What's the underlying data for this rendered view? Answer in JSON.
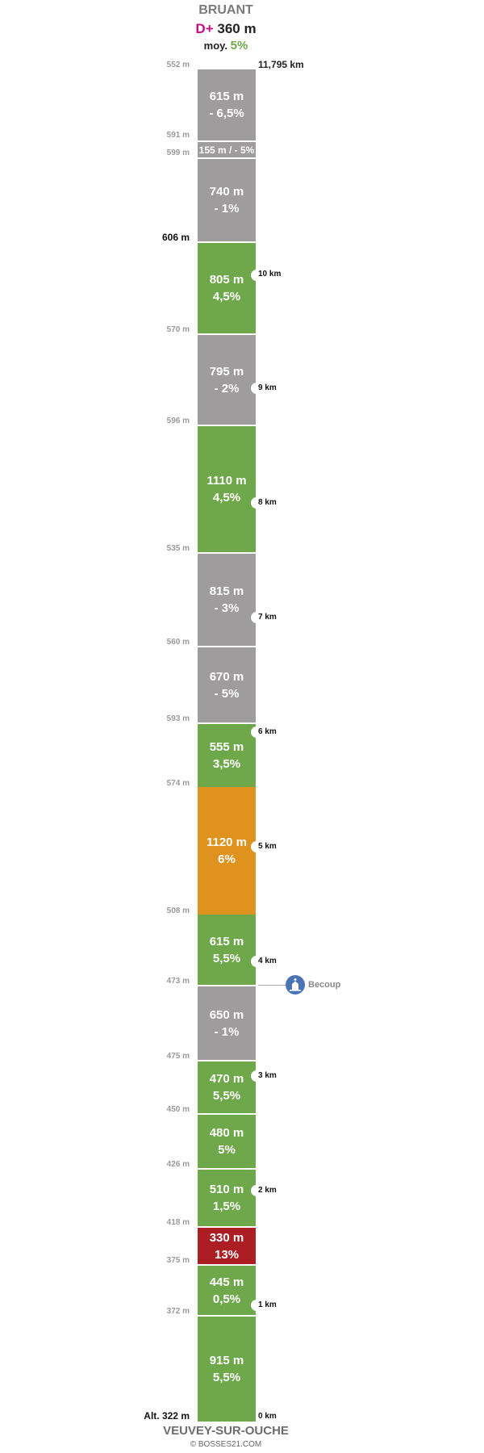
{
  "header": {
    "summit_name": "BRUANT",
    "gain_label": "D+",
    "gain_value": "360 m",
    "avg_label": "moy.",
    "avg_value": "5%",
    "total_distance": "11,795 km"
  },
  "footer": {
    "start_name": "VEUVEY-SUR-OUCHE",
    "credit": "© BOSSES21.COM"
  },
  "colors": {
    "gray": "#9e9c9d",
    "green": "#6ea84a",
    "orange": "#e0921e",
    "red": "#ad1e24",
    "poi_blue": "#4a74b4",
    "gain_magenta": "#c0127f"
  },
  "segments": [
    {
      "length": "615 m",
      "grade": "- 6,5%",
      "color": "gray"
    },
    {
      "length": "155 m / - 5%",
      "grade": "",
      "color": "gray"
    },
    {
      "length": "740 m",
      "grade": "- 1%",
      "color": "gray"
    },
    {
      "length": "805 m",
      "grade": "4,5%",
      "color": "green"
    },
    {
      "length": "795 m",
      "grade": "- 2%",
      "color": "gray"
    },
    {
      "length": "1110 m",
      "grade": "4,5%",
      "color": "green"
    },
    {
      "length": "815 m",
      "grade": "- 3%",
      "color": "gray"
    },
    {
      "length": "670 m",
      "grade": "- 5%",
      "color": "gray"
    },
    {
      "length": "555 m",
      "grade": "3,5%",
      "color": "green"
    },
    {
      "length": "1120 m",
      "grade": "6%",
      "color": "orange"
    },
    {
      "length": "615 m",
      "grade": "5,5%",
      "color": "green"
    },
    {
      "length": "650 m",
      "grade": "- 1%",
      "color": "gray"
    },
    {
      "length": "470 m",
      "grade": "5,5%",
      "color": "green"
    },
    {
      "length": "480 m",
      "grade": "5%",
      "color": "green"
    },
    {
      "length": "510 m",
      "grade": "1,5%",
      "color": "green"
    },
    {
      "length": "330 m",
      "grade": "13%",
      "color": "red"
    },
    {
      "length": "445 m",
      "grade": "0,5%",
      "color": "green"
    },
    {
      "length": "915 m",
      "grade": "5,5%",
      "color": "green"
    }
  ],
  "altitudes": [
    "552 m",
    "591 m",
    "599 m",
    "606 m",
    "570 m",
    "596 m",
    "535 m",
    "560 m",
    "593 m",
    "574 m",
    "508 m",
    "473 m",
    "475 m",
    "450 m",
    "426 m",
    "418 m",
    "375 m",
    "372 m",
    "Alt. 322 m"
  ],
  "km_markers": [
    "10 km",
    "9 km",
    "8 km",
    "7 km",
    "6 km",
    "5 km",
    "4 km",
    "3 km",
    "2 km",
    "1 km",
    "0 km"
  ],
  "poi": {
    "name": "Becoup",
    "icon": "church-icon"
  }
}
